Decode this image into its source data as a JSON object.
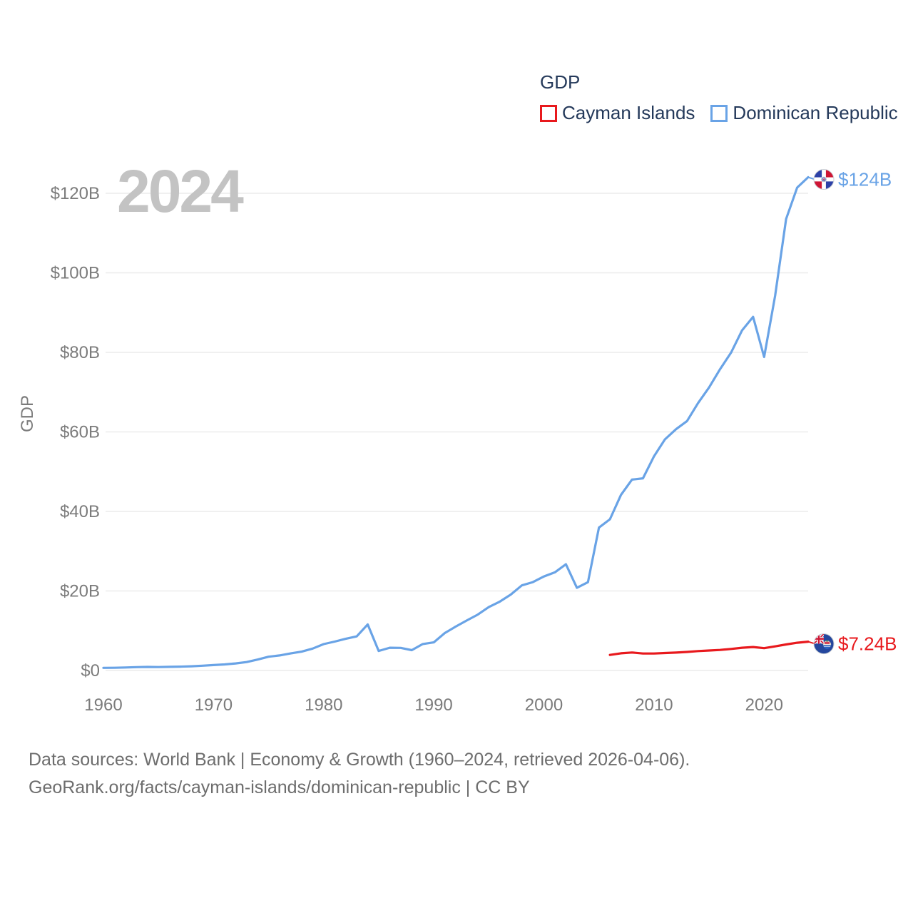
{
  "legend": {
    "title": "GDP",
    "items": [
      {
        "label": "Cayman Islands",
        "color": "#e8191d"
      },
      {
        "label": "Dominican Republic",
        "color": "#69a3e6"
      }
    ]
  },
  "chart_data": {
    "type": "line",
    "title": "GDP",
    "watermark": "2024",
    "xlabel": "",
    "ylabel": "GDP",
    "grid": true,
    "legend_position": "top-right",
    "xlim": [
      1960,
      2024
    ],
    "ylim": [
      0,
      130
    ],
    "x_ticks": [
      1960,
      1970,
      1980,
      1990,
      2000,
      2010,
      2020
    ],
    "y_ticks": [
      {
        "value": 0,
        "label": "$0"
      },
      {
        "value": 20,
        "label": "$20B"
      },
      {
        "value": 40,
        "label": "$40B"
      },
      {
        "value": 60,
        "label": "$60B"
      },
      {
        "value": 80,
        "label": "$80B"
      },
      {
        "value": 100,
        "label": "$100B"
      },
      {
        "value": 120,
        "label": "$120B"
      }
    ],
    "unit": "billions USD",
    "series": [
      {
        "name": "Cayman Islands",
        "color": "#e8191d",
        "flag": "cayman-islands",
        "start_year": 2006,
        "end_year": 2024,
        "end_label": "$7.24B",
        "values": [
          3.91,
          4.33,
          4.52,
          4.27,
          4.27,
          4.39,
          4.51,
          4.66,
          4.87,
          5.02,
          5.17,
          5.42,
          5.72,
          5.9,
          5.61,
          6.07,
          6.55,
          6.97,
          7.24
        ]
      },
      {
        "name": "Dominican Republic",
        "color": "#69a3e6",
        "flag": "dominican-republic",
        "start_year": 1960,
        "end_year": 2024,
        "end_label": "$124B",
        "values": [
          0.67,
          0.68,
          0.76,
          0.84,
          0.89,
          0.86,
          0.92,
          0.97,
          1.06,
          1.2,
          1.36,
          1.52,
          1.77,
          2.12,
          2.75,
          3.47,
          3.78,
          4.28,
          4.73,
          5.5,
          6.63,
          7.27,
          7.97,
          8.58,
          11.59,
          4.91,
          5.72,
          5.68,
          5.12,
          6.65,
          7.07,
          9.42,
          11.05,
          12.57,
          14.06,
          15.94,
          17.33,
          19.11,
          21.4,
          22.22,
          23.65,
          24.69,
          26.7,
          20.79,
          22.2,
          35.92,
          38.02,
          44.17,
          48.0,
          48.33,
          53.86,
          58.14,
          60.68,
          62.73,
          67.22,
          71.17,
          75.76,
          79.93,
          85.55,
          88.94,
          78.84,
          94.24,
          113.54,
          121.44,
          124.04
        ]
      }
    ]
  },
  "footer": {
    "line1": "Data sources: World Bank | Economy & Growth (1960–2024, retrieved 2026-04-06).",
    "line2": "GeoRank.org/facts/cayman-islands/dominican-republic | CC BY"
  }
}
